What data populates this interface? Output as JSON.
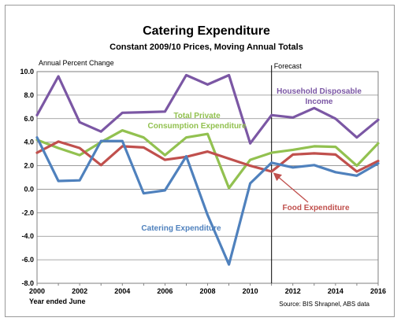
{
  "chart_data": {
    "type": "line",
    "title": "Catering Expenditure",
    "subtitle": "Constant 2009/10 Prices, Moving Annual Totals",
    "ylabel": "Annual Percent Change",
    "xlabel": "Year ended June",
    "source": "Source: BIS Shrapnel, ABS data",
    "forecast_label": "Forecast",
    "forecast_x": 2011,
    "xlim": [
      2000,
      2016
    ],
    "ylim": [
      -8,
      10
    ],
    "x_ticks": [
      2000,
      2002,
      2004,
      2006,
      2008,
      2010,
      2012,
      2014,
      2016
    ],
    "y_ticks": [
      10,
      8,
      6,
      4,
      2,
      0,
      -2,
      -4,
      -6,
      -8
    ],
    "y_tick_labels": [
      "10.0",
      "8.0",
      "6.0",
      "4.0",
      "2.0",
      "0.0",
      "-2.0",
      "-4.0",
      "-6.0",
      "-8.0"
    ],
    "x": [
      2000,
      2001,
      2002,
      2003,
      2004,
      2005,
      2006,
      2007,
      2008,
      2009,
      2010,
      2011,
      2012,
      2013,
      2014,
      2015,
      2016
    ],
    "series": [
      {
        "name": "Household Disposable Income",
        "color": "#7b57a4",
        "label_lines": [
          "Household Disposable",
          "Income"
        ],
        "values": [
          6.3,
          9.6,
          5.7,
          4.9,
          6.5,
          6.55,
          6.6,
          9.7,
          8.9,
          9.7,
          3.9,
          6.3,
          6.1,
          6.9,
          6.0,
          4.4,
          5.9
        ]
      },
      {
        "name": "Total Private Consumption Expenditure",
        "color": "#92c150",
        "label_lines": [
          "Total Private",
          "Consumption Expenditure"
        ],
        "values": [
          4.2,
          3.5,
          2.9,
          4.0,
          5.0,
          4.4,
          2.9,
          4.4,
          4.7,
          0.1,
          2.5,
          3.1,
          3.35,
          3.65,
          3.6,
          2.0,
          3.9
        ]
      },
      {
        "name": "Food Expenditure",
        "color": "#c0504d",
        "label_lines": [
          "Food Expenditure"
        ],
        "values": [
          3.1,
          4.05,
          3.5,
          2.05,
          3.65,
          3.55,
          2.5,
          2.75,
          3.2,
          2.6,
          2.0,
          1.5,
          2.95,
          3.05,
          2.95,
          1.5,
          2.4
        ]
      },
      {
        "name": "Catering Expenditure",
        "color": "#4f81bd",
        "label_lines": [
          "Catering Expenditure"
        ],
        "values": [
          4.4,
          0.7,
          0.75,
          4.1,
          4.1,
          -0.35,
          -0.1,
          2.8,
          -2.2,
          -6.4,
          0.5,
          2.25,
          1.85,
          2.05,
          1.45,
          1.15,
          2.2
        ]
      }
    ],
    "grid": "horizontal",
    "legend": "inline labels"
  }
}
